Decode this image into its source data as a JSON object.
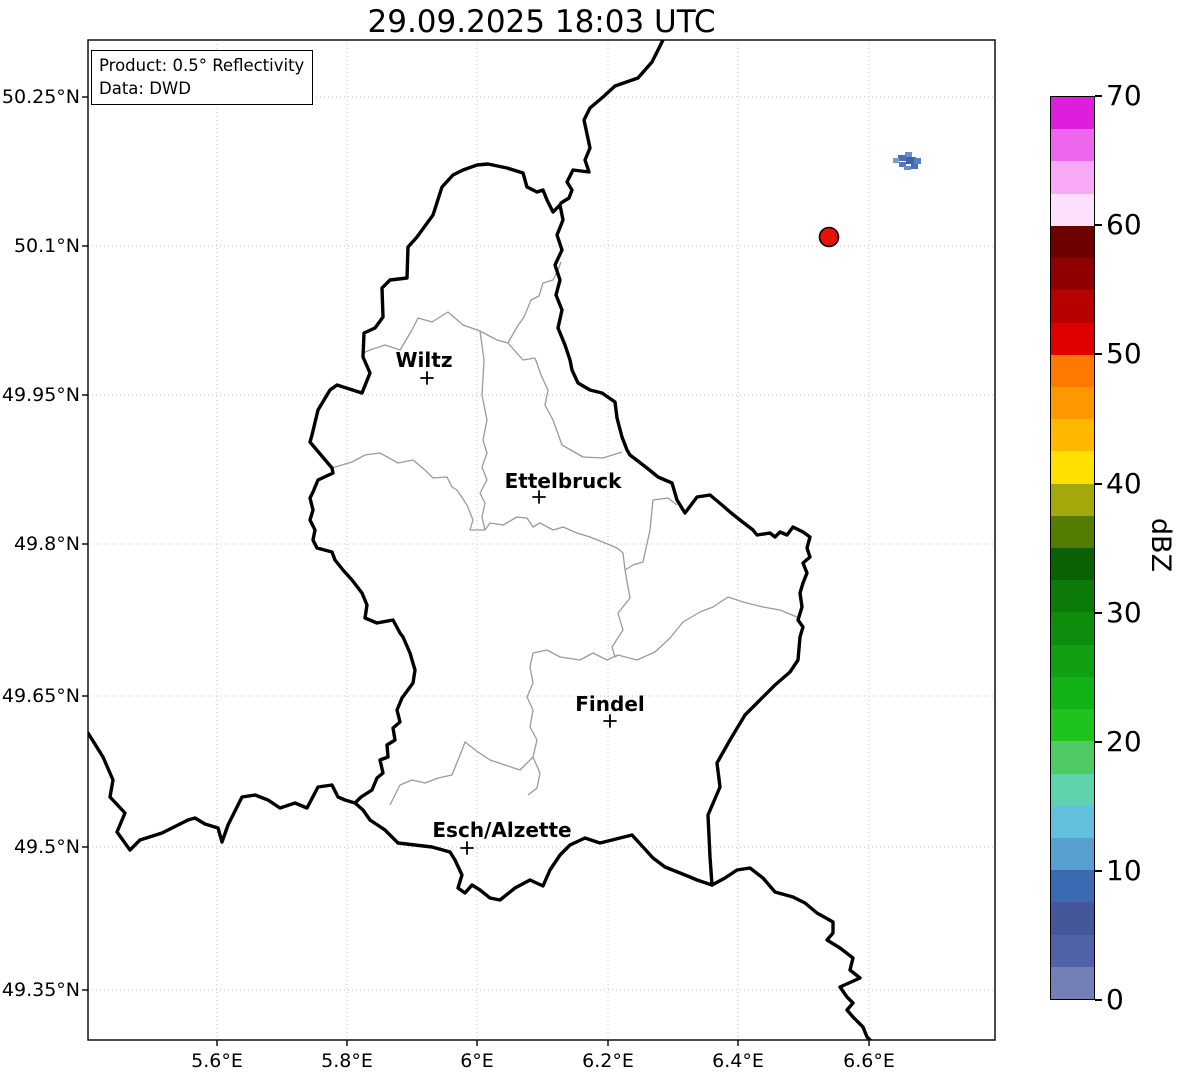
{
  "chart_data": {
    "type": "map-radar",
    "title": "29.09.2025 18:03 UTC",
    "info_box": {
      "line1": "Product: 0.5° Reflectivity",
      "line2": "Data: DWD"
    },
    "region": "Luxembourg and surrounding border areas",
    "axes": {
      "lon_ticks": [
        "5.6°E",
        "5.8°E",
        "6°E",
        "6.2°E",
        "6.4°E",
        "6.6°E"
      ],
      "lon_values": [
        5.6,
        5.8,
        6.0,
        6.2,
        6.4,
        6.6
      ],
      "lat_ticks": [
        "50.25°N",
        "50.1°N",
        "49.95°N",
        "49.8°N",
        "49.65°N",
        "49.5°N",
        "49.35°N"
      ],
      "lat_values": [
        50.25,
        50.1,
        49.95,
        49.8,
        49.65,
        49.5,
        49.35
      ],
      "grid": "dotted"
    },
    "cities": [
      {
        "name": "Wiltz",
        "lon": 5.92,
        "lat": 49.97
      },
      {
        "name": "Ettelbruck",
        "lon": 6.09,
        "lat": 49.85
      },
      {
        "name": "Findel",
        "lon": 6.2,
        "lat": 49.62
      },
      {
        "name": "Esch/Alzette",
        "lon": 5.98,
        "lat": 49.49
      }
    ],
    "colorbar": {
      "label": "dBZ",
      "min": 0,
      "max": 70,
      "step": 2.5,
      "tick_labels": [
        "70",
        "60",
        "50",
        "40",
        "30",
        "20",
        "10",
        "0"
      ],
      "colors_bottom_to_top": [
        "#7380b5",
        "#5262a8",
        "#46569b",
        "#3c6ab2",
        "#569fd0",
        "#63c0dc",
        "#5dd4ae",
        "#4ecb64",
        "#1ec41e",
        "#12b317",
        "#10a011",
        "#0e8d0c",
        "#0c7a08",
        "#0a6103",
        "#537c00",
        "#a3a80b",
        "#ffe000",
        "#ffb800",
        "#ff9800",
        "#ff7800",
        "#e00000",
        "#b70000",
        "#900000",
        "#6e0000",
        "#fce0fc",
        "#f7a8f7",
        "#ee66ee",
        "#dd1fdd"
      ]
    },
    "echoes": {
      "point": {
        "lon": 6.538,
        "lat": 50.109,
        "approx_dbz": 50,
        "color": "#e8120a"
      },
      "weak_cluster": {
        "center_lon": 6.658,
        "center_lat": 50.186,
        "approx_dbz_range": [
          0,
          10
        ],
        "cells": [
          [
            905,
            152,
            7,
            5,
            "#6a8ec6"
          ],
          [
            898,
            155,
            8,
            6,
            "#4a6fb5"
          ],
          [
            906,
            157,
            10,
            7,
            "#3f63a8"
          ],
          [
            914,
            158,
            7,
            6,
            "#5580c0"
          ],
          [
            893,
            158,
            6,
            5,
            "#7b9bcc"
          ],
          [
            899,
            162,
            7,
            5,
            "#5577bb"
          ],
          [
            911,
            164,
            7,
            5,
            "#4a6fb5"
          ],
          [
            904,
            166,
            7,
            4,
            "#6a8ec6"
          ]
        ]
      }
    }
  }
}
